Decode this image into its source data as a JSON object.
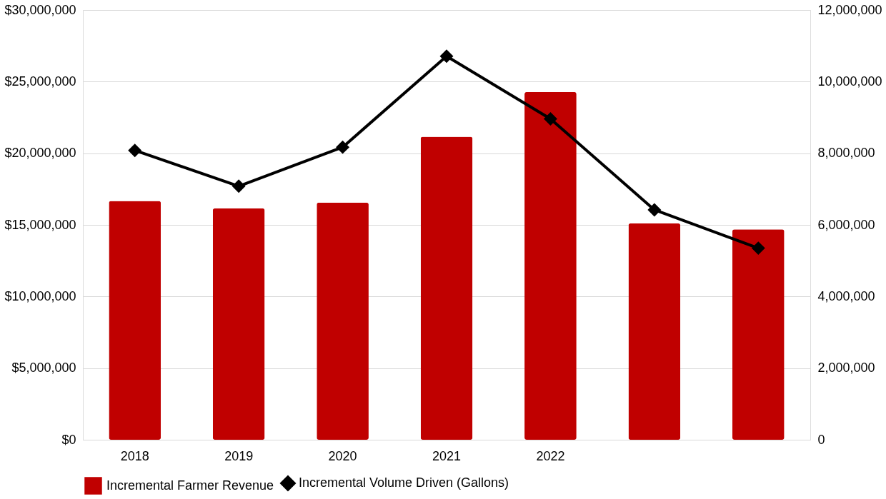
{
  "chart_data": {
    "type": "bar",
    "categories": [
      "2018",
      "2019",
      "2020",
      "2021",
      "2022",
      null,
      null
    ],
    "series": [
      {
        "name": "Incremental Farmer Revenue",
        "color": "#c00000",
        "values": [
          16670000,
          16150000,
          16560000,
          21150000,
          24270000,
          15100000,
          14690000
        ]
      },
      {
        "name": "Incremental Volume Driven (Gallons)",
        "type": "line",
        "axis": "y2",
        "color": "#000000",
        "marker": "diamond",
        "values": [
          8080000,
          7080000,
          8170000,
          10710000,
          8960000,
          6420000,
          5350000
        ]
      }
    ],
    "ylim": [
      0,
      30000000
    ],
    "yticks": [
      {
        "value": 0,
        "label": "$0"
      },
      {
        "value": 5000000,
        "label": "$5,000,000"
      },
      {
        "value": 10000000,
        "label": "$10,000,000"
      },
      {
        "value": 15000000,
        "label": "$15,000,000"
      },
      {
        "value": 20000000,
        "label": "$20,000,000"
      },
      {
        "value": 25000000,
        "label": "$25,000,000"
      },
      {
        "value": 30000000,
        "label": "$30,000,000"
      }
    ],
    "y2lim": [
      0,
      12000000
    ],
    "y2ticks": [
      0,
      {
        "value": 2000000,
        "label": "2,000,000"
      },
      {
        "value": 4000000,
        "label": "4,000,000"
      },
      {
        "value": 6000000,
        "label": "6,000,000"
      },
      {
        "value": 8000000,
        "label": "8,000,000"
      },
      {
        "value": 10000000,
        "label": "10,000,000"
      },
      {
        "value": 12000000,
        "label": "12,000,000"
      }
    ],
    "grid": "y",
    "legend": "bottom"
  }
}
